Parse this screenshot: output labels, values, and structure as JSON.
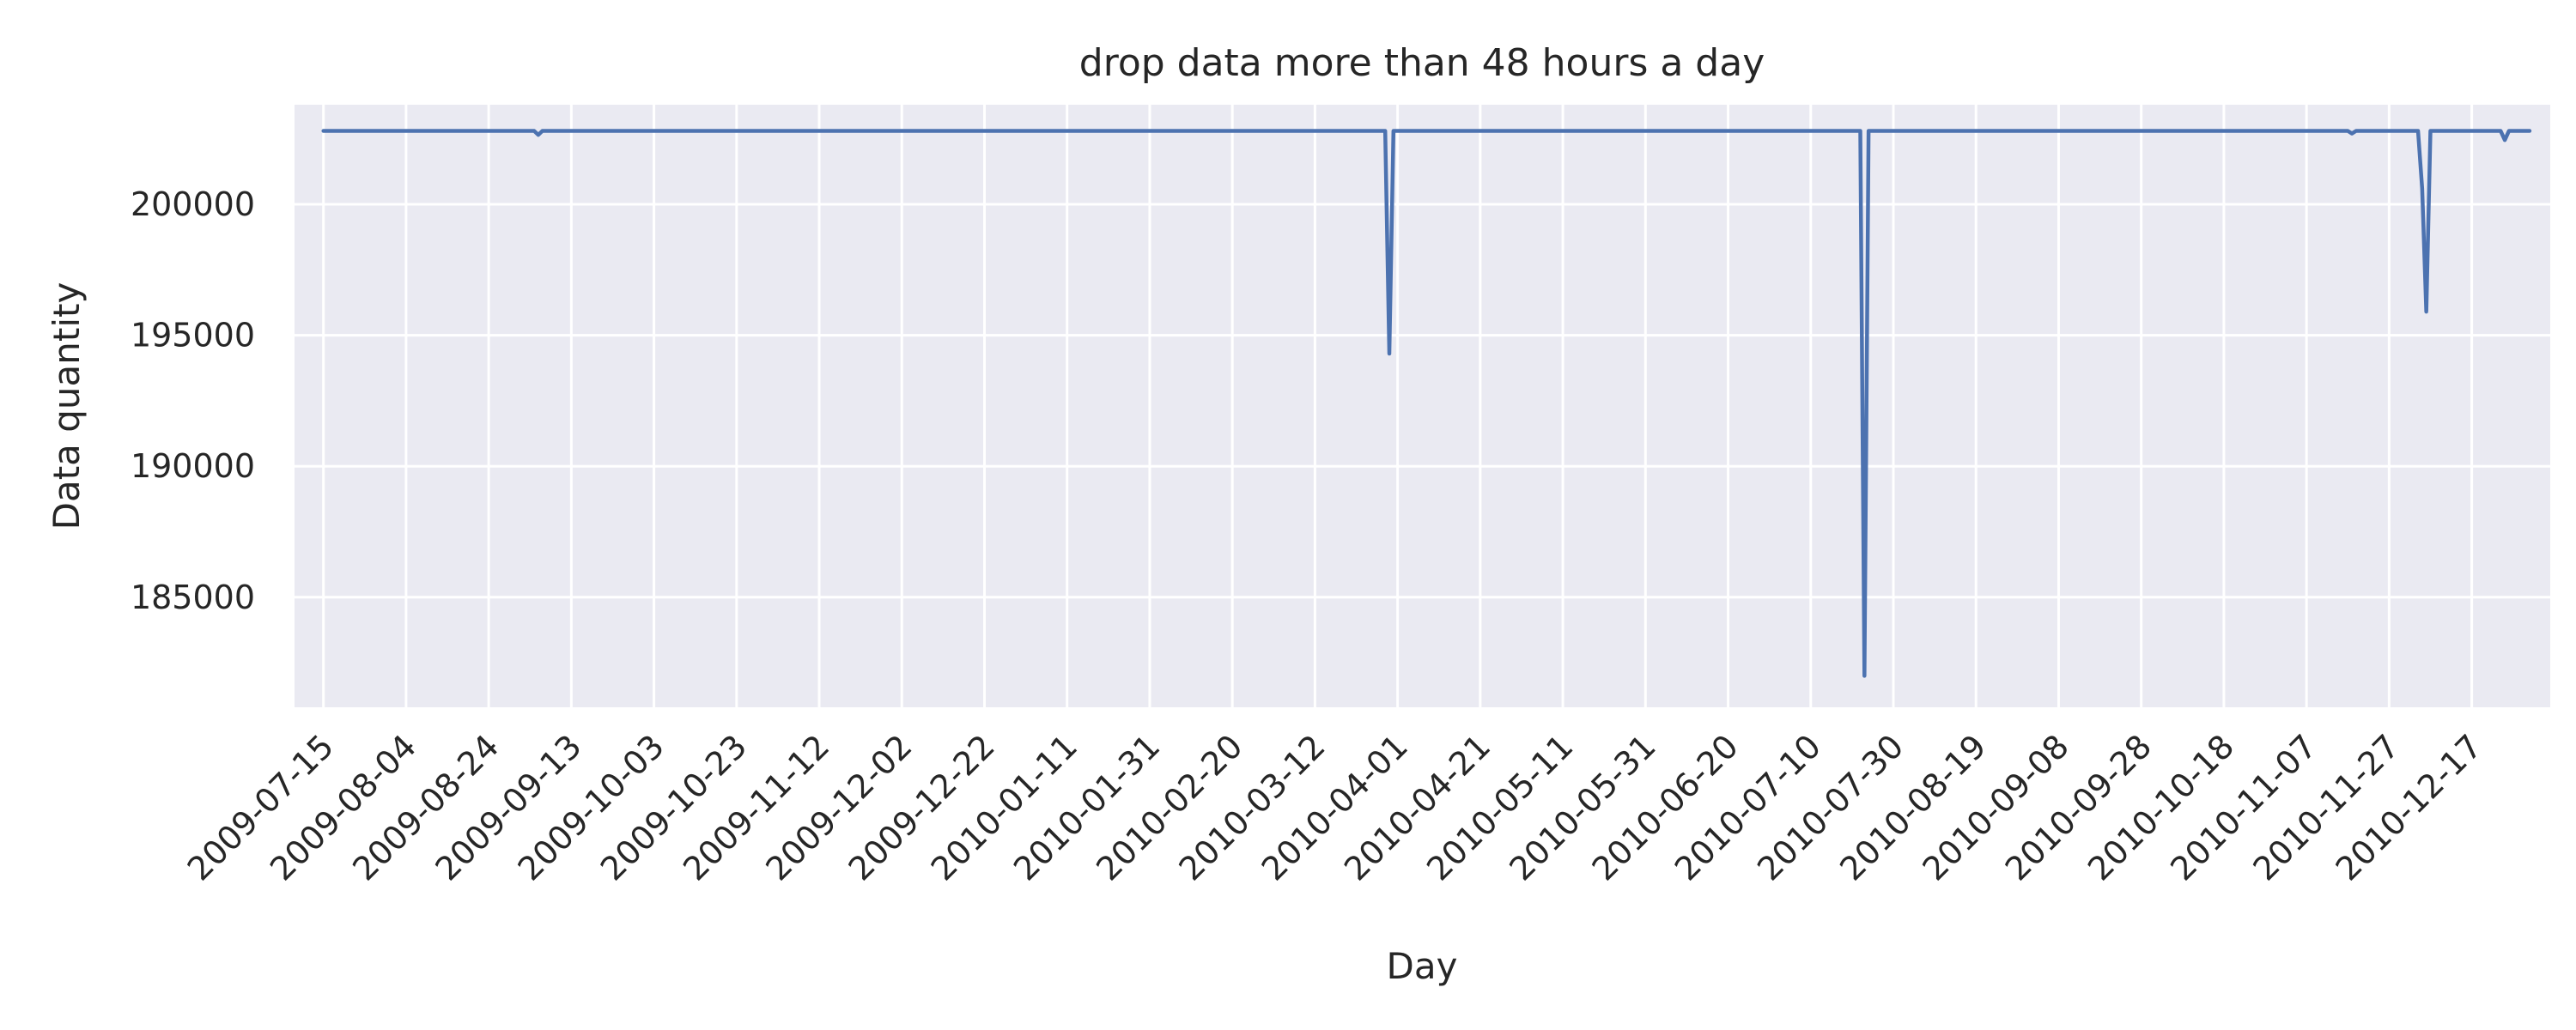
{
  "chart_data": {
    "type": "line",
    "title": "drop data more than 48 hours a day",
    "xlabel": "Day",
    "ylabel": "Data quantity",
    "x_axis_type": "date",
    "xlim": [
      "2009-07-08",
      "2011-01-05"
    ],
    "ylim": [
      180800,
      203800
    ],
    "grid": true,
    "legend": "none",
    "colors": {
      "background": "#eaeaf2",
      "grid": "#ffffff",
      "line": "#4c72b0",
      "text": "#262626"
    },
    "x_ticks": [
      "2009-07-15",
      "2009-08-04",
      "2009-08-24",
      "2009-09-13",
      "2009-10-03",
      "2009-10-23",
      "2009-11-12",
      "2009-12-02",
      "2009-12-22",
      "2010-01-11",
      "2010-01-31",
      "2010-02-20",
      "2010-03-12",
      "2010-04-01",
      "2010-04-21",
      "2010-05-11",
      "2010-05-31",
      "2010-06-20",
      "2010-07-10",
      "2010-07-30",
      "2010-08-19",
      "2010-09-08",
      "2010-09-28",
      "2010-10-18",
      "2010-11-07",
      "2010-11-27",
      "2010-12-17"
    ],
    "y_ticks": [
      185000,
      190000,
      195000,
      200000
    ],
    "series": [
      {
        "points": [
          [
            "2009-07-15",
            202800
          ],
          [
            "2009-09-04",
            202800
          ],
          [
            "2009-09-05",
            202650
          ],
          [
            "2009-09-06",
            202800
          ],
          [
            "2010-03-29",
            202800
          ],
          [
            "2010-03-30",
            194300
          ],
          [
            "2010-03-31",
            202800
          ],
          [
            "2010-07-22",
            202800
          ],
          [
            "2010-07-23",
            182000
          ],
          [
            "2010-07-24",
            202800
          ],
          [
            "2010-11-17",
            202800
          ],
          [
            "2010-11-18",
            202700
          ],
          [
            "2010-11-19",
            202800
          ],
          [
            "2010-12-04",
            202800
          ],
          [
            "2010-12-05",
            200600
          ],
          [
            "2010-12-06",
            195900
          ],
          [
            "2010-12-07",
            202800
          ],
          [
            "2010-12-24",
            202800
          ],
          [
            "2010-12-25",
            202450
          ],
          [
            "2010-12-26",
            202800
          ],
          [
            "2010-12-31",
            202800
          ]
        ]
      }
    ]
  }
}
